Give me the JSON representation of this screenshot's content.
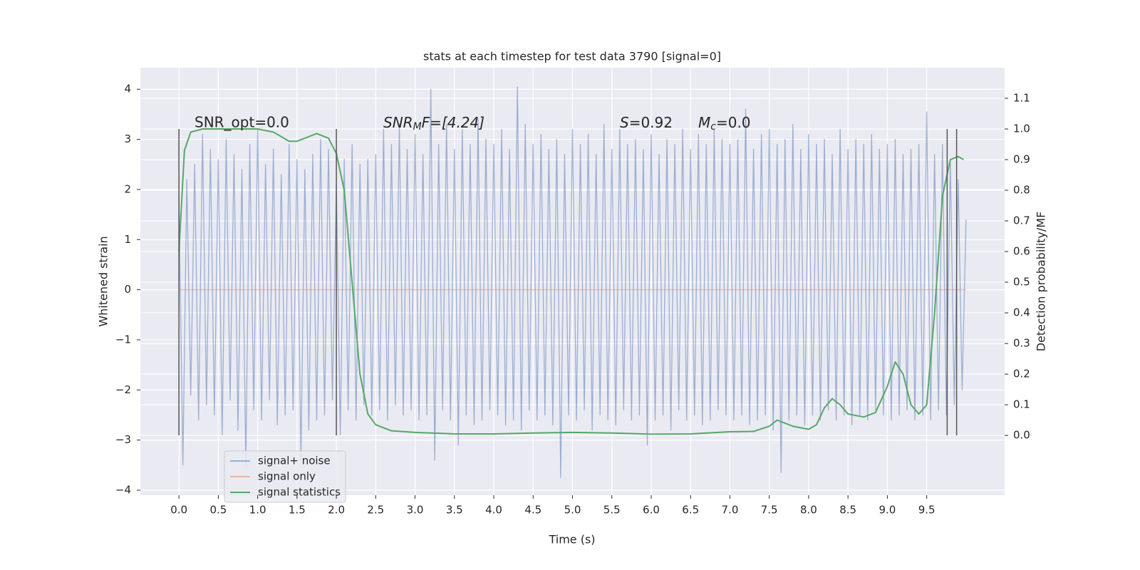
{
  "chart_data": {
    "type": "line",
    "title": "stats at each timestep for test data 3790 [signal=0]",
    "xlabel": "Time (s)",
    "ylabel": "Whitened strain",
    "y2label": "Detection probability/MF",
    "annotations": [
      "SNR_opt=0.0",
      [
        "SNR",
        "M",
        "F=[4.24]"
      ],
      [
        "S",
        "=0.92"
      ],
      [
        "M",
        "c",
        "=0.0"
      ]
    ],
    "xlim": [
      -0.49,
      10.49
    ],
    "ylim": [
      -4.1,
      4.43
    ],
    "y2lim": [
      -0.195,
      1.2
    ],
    "xticks": [
      {
        "value": 0,
        "label": "0.0"
      },
      0.5,
      {
        "value": 1,
        "label": "1.0"
      },
      1.5,
      {
        "value": 2,
        "label": "2.0"
      },
      2.5,
      {
        "value": 3,
        "label": "3.0"
      },
      3.5,
      {
        "value": 4,
        "label": "4.0"
      },
      4.5,
      {
        "value": 5,
        "label": "5.0"
      },
      5.5,
      {
        "value": 6,
        "label": "6.0"
      },
      6.5,
      {
        "value": 7,
        "label": "7.0"
      },
      7.5,
      {
        "value": 8,
        "label": "8.0"
      },
      8.5,
      {
        "value": 9,
        "label": "9.0"
      },
      9.5
    ],
    "yticks": [
      {
        "value": -4,
        "label": "−4"
      },
      {
        "value": -3,
        "label": "−3"
      },
      {
        "value": -2,
        "label": "−2"
      },
      {
        "value": -1,
        "label": "−1"
      },
      0,
      1,
      2,
      3,
      4
    ],
    "y2ticks": [
      {
        "value": 0,
        "label": "0.0"
      },
      0.1,
      0.2,
      0.3,
      0.4,
      0.5,
      0.6,
      0.7,
      0.8,
      0.9,
      {
        "value": 1,
        "label": "1.0"
      },
      1.1
    ],
    "grid": true,
    "legend": "lower left",
    "vlines": {
      "x": [
        0,
        2.0,
        9.76,
        9.88
      ],
      "ymin": 0,
      "ymax": 1,
      "color": "#555555",
      "axis": "y2"
    },
    "series": [
      {
        "name": "signal+ noise",
        "color": "#4c72b0",
        "x": [
          0,
          0.05,
          0.1,
          0.15,
          0.2,
          0.25,
          0.3,
          0.35,
          0.4,
          0.45,
          0.5,
          0.55,
          0.6,
          0.65,
          0.7,
          0.75,
          0.8,
          0.85,
          0.9,
          0.95,
          1.0,
          1.05,
          1.1,
          1.15,
          1.2,
          1.25,
          1.3,
          1.35,
          1.4,
          1.45,
          1.5,
          1.55,
          1.6,
          1.65,
          1.7,
          1.75,
          1.8,
          1.85,
          1.9,
          1.95,
          2.0,
          2.05,
          2.1,
          2.15,
          2.2,
          2.25,
          2.3,
          2.35,
          2.4,
          2.45,
          2.5,
          2.55,
          2.6,
          2.65,
          2.7,
          2.75,
          2.8,
          2.85,
          2.9,
          2.95,
          3.0,
          3.05,
          3.1,
          3.15,
          3.2,
          3.25,
          3.3,
          3.35,
          3.4,
          3.45,
          3.5,
          3.55,
          3.6,
          3.65,
          3.7,
          3.75,
          3.8,
          3.85,
          3.9,
          3.95,
          4.0,
          4.05,
          4.1,
          4.15,
          4.2,
          4.25,
          4.3,
          4.35,
          4.4,
          4.45,
          4.5,
          4.55,
          4.6,
          4.65,
          4.7,
          4.75,
          4.8,
          4.85,
          4.9,
          4.95,
          5.0,
          5.05,
          5.1,
          5.15,
          5.2,
          5.25,
          5.3,
          5.35,
          5.4,
          5.45,
          5.5,
          5.55,
          5.6,
          5.65,
          5.7,
          5.75,
          5.8,
          5.85,
          5.9,
          5.95,
          6.0,
          6.05,
          6.1,
          6.15,
          6.2,
          6.25,
          6.3,
          6.35,
          6.4,
          6.45,
          6.5,
          6.55,
          6.6,
          6.65,
          6.7,
          6.75,
          6.8,
          6.85,
          6.9,
          6.95,
          7.0,
          7.05,
          7.1,
          7.15,
          7.2,
          7.25,
          7.3,
          7.35,
          7.4,
          7.45,
          7.5,
          7.55,
          7.6,
          7.65,
          7.7,
          7.75,
          7.8,
          7.85,
          7.9,
          7.95,
          8.0,
          8.05,
          8.1,
          8.15,
          8.2,
          8.25,
          8.3,
          8.35,
          8.4,
          8.45,
          8.5,
          8.55,
          8.6,
          8.65,
          8.7,
          8.75,
          8.8,
          8.85,
          8.9,
          8.95,
          9.0,
          9.05,
          9.1,
          9.15,
          9.2,
          9.25,
          9.3,
          9.35,
          9.4,
          9.45,
          9.5,
          9.55,
          9.6,
          9.65,
          9.7,
          9.75,
          9.8,
          9.85,
          9.9,
          9.95,
          10.0
        ],
        "values": [
          1.9,
          -3.5,
          2.2,
          -2.1,
          2.5,
          -2.6,
          3.1,
          -2.3,
          2.8,
          -2.5,
          2.6,
          -2.9,
          3.0,
          -2.2,
          2.7,
          -2.8,
          2.4,
          -3.5,
          2.9,
          -2.4,
          3.2,
          -2.6,
          2.5,
          -2.2,
          2.8,
          -2.7,
          2.3,
          -2.5,
          2.9,
          -2.4,
          2.6,
          -3.4,
          2.4,
          -2.8,
          2.7,
          -2.6,
          3.0,
          -2.5,
          2.8,
          -2.2,
          2.1,
          -2.9,
          2.6,
          -2.4,
          2.9,
          -2.6,
          2.5,
          -2.3,
          2.6,
          -2.5,
          2.7,
          -2.4,
          3.2,
          -2.6,
          2.9,
          -2.3,
          3.3,
          -2.5,
          2.8,
          -2.4,
          3.1,
          -2.6,
          2.7,
          -2.5,
          4.0,
          -3.4,
          2.9,
          -2.4,
          3.3,
          -2.6,
          2.8,
          -3.1,
          3.2,
          -2.5,
          2.9,
          -2.7,
          3.4,
          -2.6,
          3.0,
          -2.4,
          2.9,
          -2.5,
          3.2,
          -2.7,
          2.8,
          -2.6,
          4.05,
          -2.8,
          3.3,
          -2.4,
          2.9,
          -2.6,
          3.1,
          -2.5,
          2.8,
          -2.7,
          3.0,
          -3.75,
          2.7,
          -2.5,
          3.2,
          -2.6,
          2.9,
          -2.4,
          3.1,
          -2.8,
          2.7,
          -2.5,
          3.3,
          -2.6,
          2.8,
          -2.7,
          3.2,
          -2.4,
          2.9,
          -2.6,
          3.0,
          -2.5,
          2.8,
          -3.1,
          3.1,
          -2.6,
          2.7,
          -2.5,
          3.0,
          -2.8,
          2.9,
          -2.4,
          3.2,
          -2.6,
          2.8,
          -2.5,
          3.1,
          -2.7,
          2.9,
          -2.6,
          3.2,
          -2.4,
          3.0,
          -2.5,
          2.9,
          -2.6,
          3.0,
          -2.5,
          3.6,
          -2.7,
          2.8,
          -2.6,
          3.1,
          -2.5,
          3.2,
          -2.8,
          2.9,
          -3.65,
          3.0,
          -2.6,
          3.3,
          -2.5,
          2.8,
          -2.7,
          3.1,
          -2.5,
          2.9,
          -2.6,
          3.0,
          -2.4,
          2.7,
          -2.6,
          3.2,
          -2.5,
          2.8,
          -2.7,
          3.0,
          -2.5,
          2.9,
          -2.6,
          3.1,
          -2.4,
          2.8,
          -2.5,
          2.9,
          -2.6,
          3.0,
          -2.5,
          2.7,
          -2.4,
          2.8,
          -2.6,
          2.9,
          -2.5,
          3.55,
          -2.6,
          2.7,
          -2.4,
          2.9,
          -2.5,
          2.6,
          -2.3,
          2.2,
          -2.0,
          1.4
        ]
      },
      {
        "name": "signal only",
        "color": "#dd8452",
        "x": [
          0,
          10
        ],
        "values": [
          0,
          0
        ]
      },
      {
        "name": "signal statistics",
        "color": "#55a868",
        "axis": "y2",
        "x": [
          0,
          0.07,
          0.15,
          0.3,
          1.0,
          1.2,
          1.4,
          1.5,
          1.6,
          1.75,
          1.9,
          2.0,
          2.1,
          2.2,
          2.3,
          2.4,
          2.5,
          2.7,
          3.0,
          3.5,
          4.0,
          4.5,
          5.0,
          5.5,
          6.0,
          6.5,
          7.0,
          7.3,
          7.5,
          7.6,
          7.8,
          8.0,
          8.1,
          8.2,
          8.3,
          8.4,
          8.5,
          8.7,
          8.85,
          9.0,
          9.1,
          9.2,
          9.3,
          9.4,
          9.5,
          9.6,
          9.7,
          9.8,
          9.9,
          9.97
        ],
        "values": [
          0.6,
          0.93,
          0.99,
          1.0,
          1.0,
          0.99,
          0.96,
          0.96,
          0.97,
          0.985,
          0.97,
          0.92,
          0.8,
          0.5,
          0.2,
          0.07,
          0.035,
          0.015,
          0.01,
          0.005,
          0.005,
          0.008,
          0.01,
          0.008,
          0.004,
          0.005,
          0.012,
          0.013,
          0.03,
          0.05,
          0.03,
          0.02,
          0.035,
          0.09,
          0.12,
          0.1,
          0.07,
          0.06,
          0.075,
          0.16,
          0.24,
          0.2,
          0.1,
          0.07,
          0.1,
          0.4,
          0.78,
          0.9,
          0.91,
          0.9
        ]
      }
    ]
  }
}
